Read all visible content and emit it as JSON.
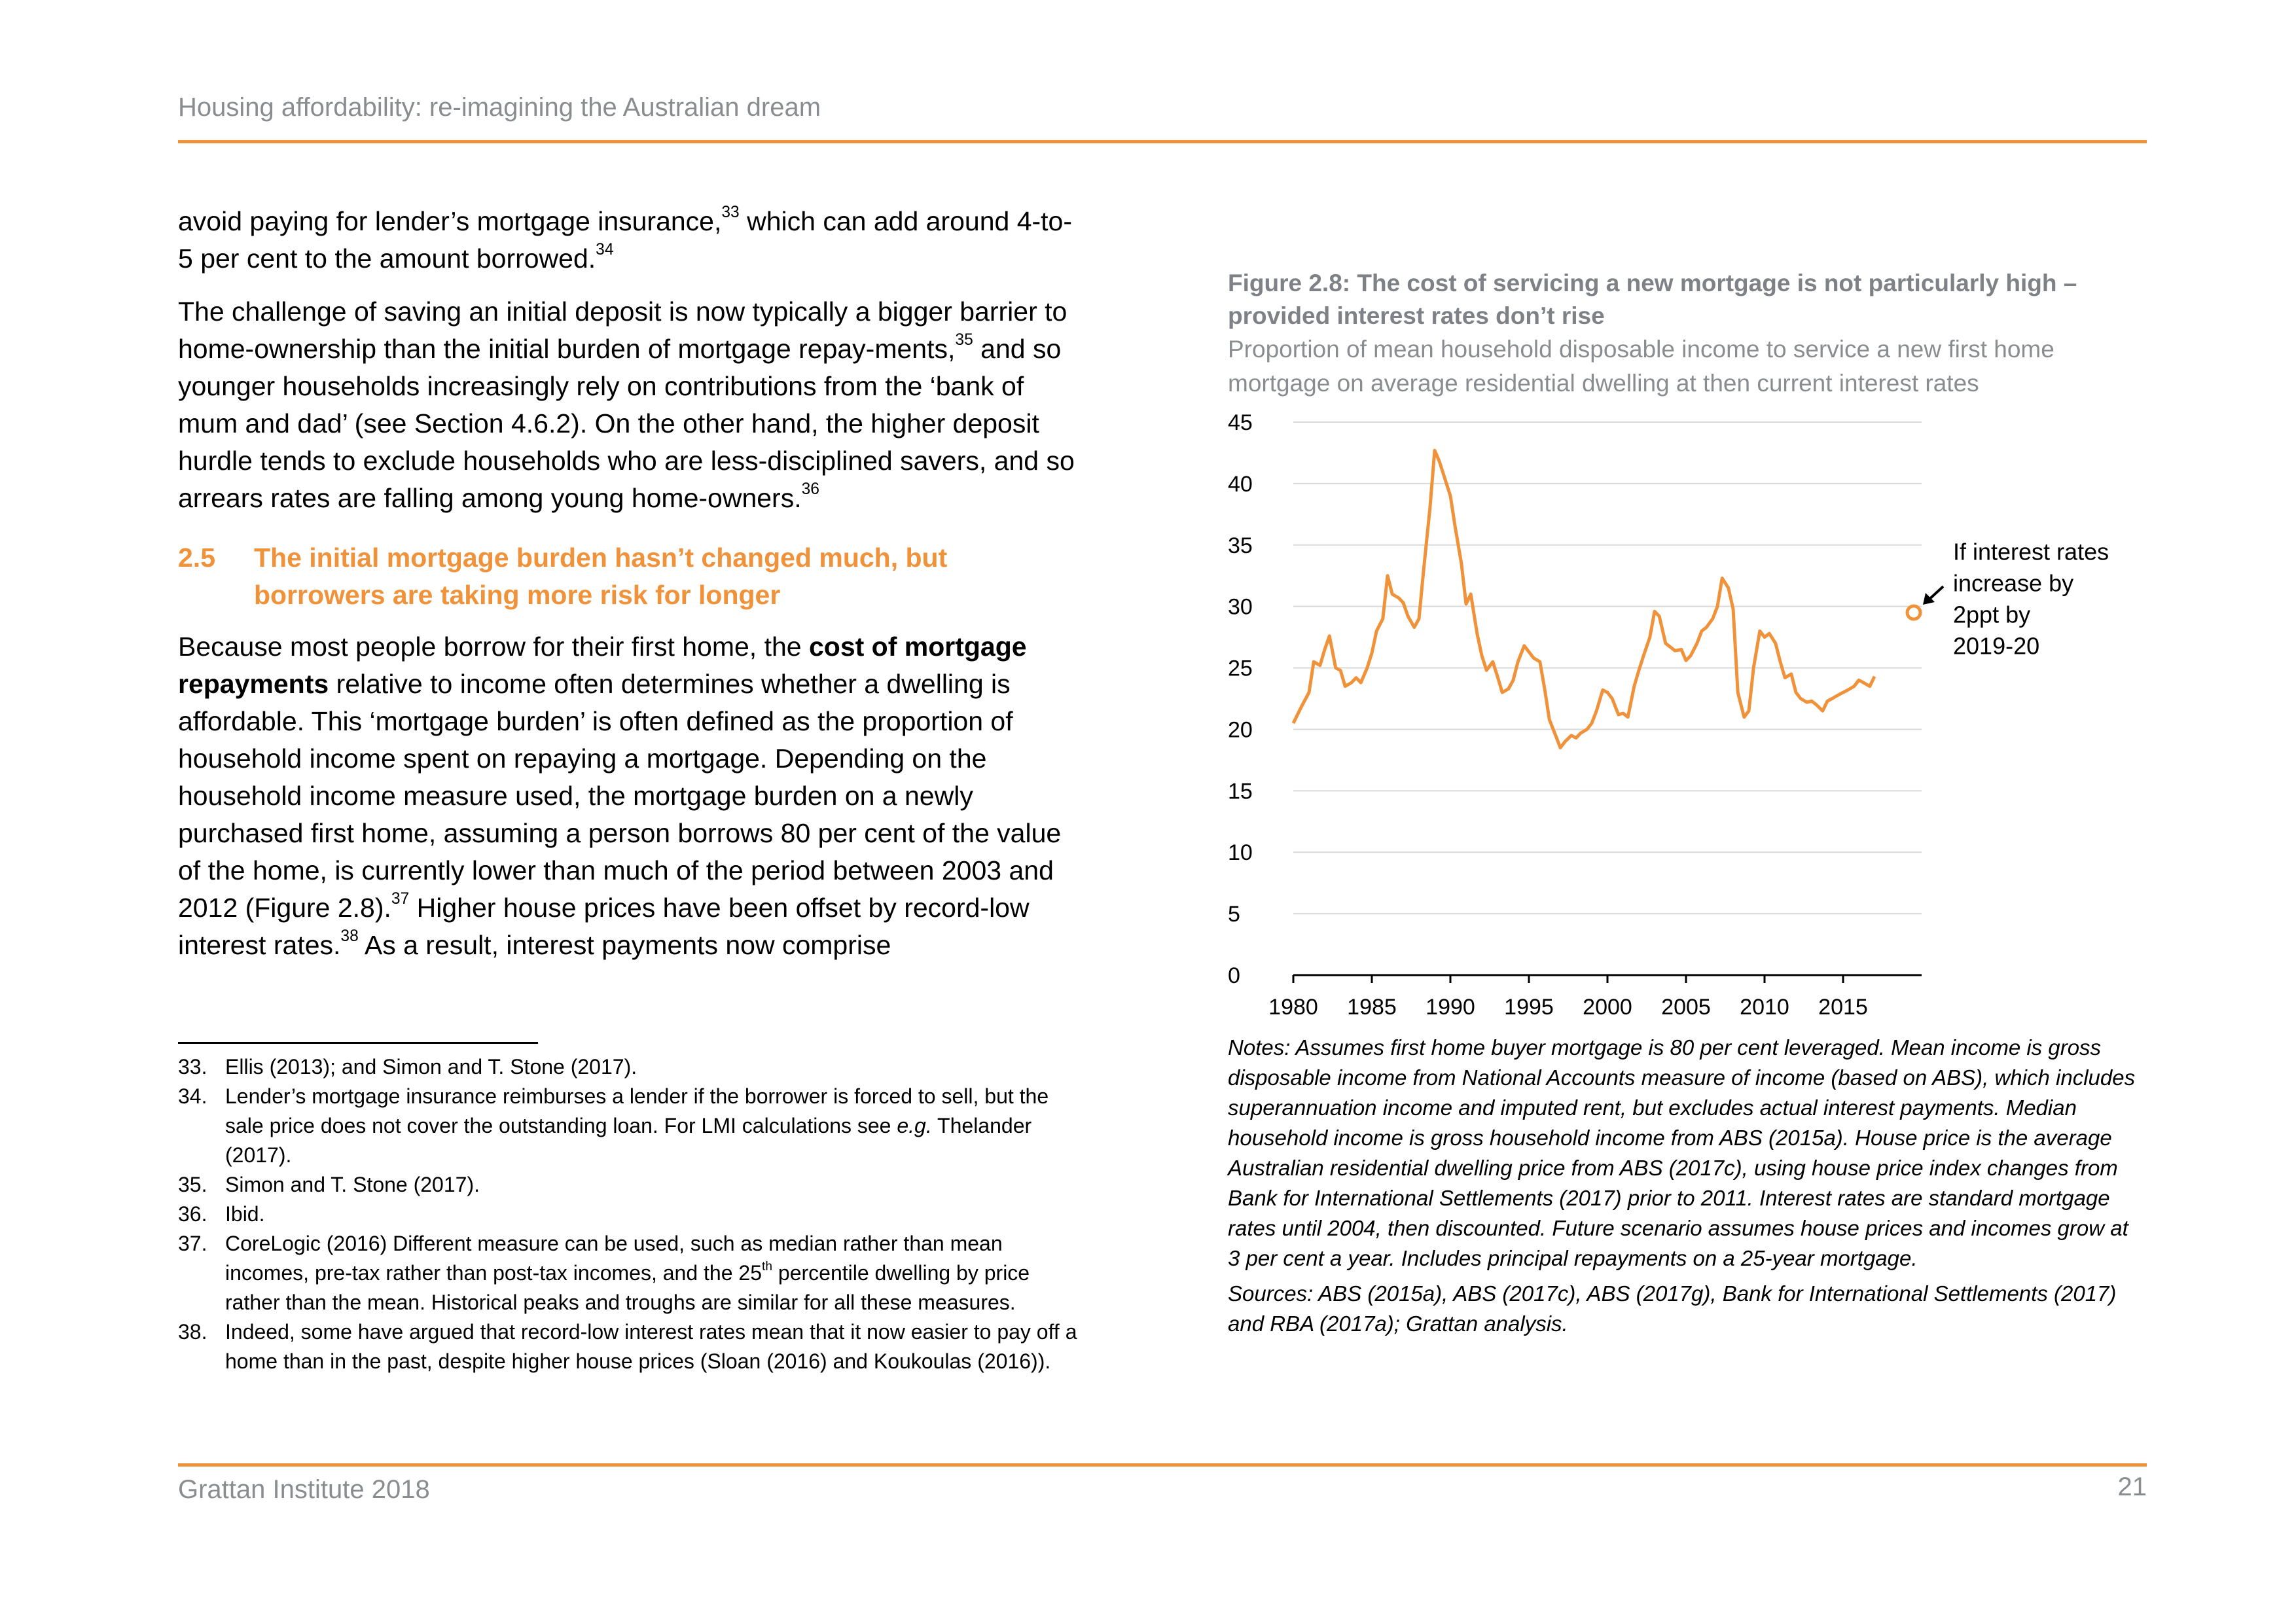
{
  "header": {
    "title": "Housing affordability: re-imagining the Australian dream"
  },
  "body": {
    "p1": {
      "a": "avoid paying for lender’s mortgage insurance,",
      "s1": "33",
      "b": " which can add around 4-to-5 per cent to the amount borrowed.",
      "s2": "34"
    },
    "p2": {
      "a": "The challenge of saving an initial deposit is now typically a bigger barrier to home-ownership than the initial burden of mortgage repay-ments,",
      "s1": "35",
      "b": " and so younger households increasingly rely on contributions from the ‘bank of mum and dad’ (see Section 4.6.2). On the other hand, the higher deposit hurdle tends to exclude households who are less-disciplined savers, and so arrears rates are falling among young home-owners.",
      "s2": "36"
    },
    "section": {
      "number": "2.5",
      "title": "The initial mortgage burden hasn’t changed much, but borrowers are taking more risk for longer"
    },
    "p3": {
      "a": "Because most people borrow for their first home, the ",
      "bold": "cost of mortgage repayments",
      "b": " relative to income often determines whether a dwelling is affordable. This ‘mortgage burden’ is often defined as the proportion of household income spent on repaying a mortgage. Depending on the household income measure used, the mortgage burden on a newly purchased first home, assuming a person borrows 80 per cent of the value of the home, is currently lower than much of the period between 2003 and 2012 (Figure 2.8).",
      "s1": "37",
      "c": " Higher house prices have been offset by record-low interest rates.",
      "s2": "38",
      "d": " As a result, interest payments now comprise"
    }
  },
  "footnotes": [
    {
      "num": "33.",
      "text": "Ellis (2013); and Simon and T. Stone (2017)."
    },
    {
      "num": "34.",
      "text": "Lender’s mortgage insurance reimburses a lender if the borrower is forced to sell, but the sale price does not cover the outstanding loan. For LMI calculations see ",
      "italic": "e.g.",
      "text2": " Thelander (2017)."
    },
    {
      "num": "35.",
      "text": "Simon and T. Stone (2017)."
    },
    {
      "num": "36.",
      "text": "Ibid."
    },
    {
      "num": "37.",
      "text": "CoreLogic (2016) Different measure can be used, such as median rather than mean incomes, pre-tax rather than post-tax incomes, and the 25",
      "sup": "th",
      "text2": " percentile dwelling by price rather than the mean. Historical peaks and troughs are similar for all these measures."
    },
    {
      "num": "38.",
      "text": "Indeed, some have argued that record-low interest rates mean that it now easier to pay off a home than in the past, despite higher house prices (Sloan (2016) and Koukoulas (2016))."
    }
  ],
  "figure": {
    "title": "Figure 2.8: The cost of servicing a new mortgage is not particularly high – provided interest rates don’t rise",
    "subtitle": "Proportion of mean household disposable income to service a new first home mortgage on average residential dwelling at then current interest rates",
    "notes": "Notes: Assumes first home buyer mortgage is 80 per cent leveraged. Mean income is gross disposable income from National Accounts measure of income (based on ABS), which includes superannuation income and imputed rent, but excludes actual interest payments. Median household income is gross household income from ABS (2015a). House price is the average Australian residential dwelling price from ABS (2017c), using house price index changes from Bank for International Settlements (2017) prior to 2011. Interest rates are standard mortgage rates until 2004, then discounted. Future scenario assumes house prices and incomes grow at 3 per cent a year. Includes principal repayments on a 25-year mortgage.",
    "sources": "Sources: ABS (2015a), ABS (2017c), ABS (2017g), Bank for International Settlements (2017) and RBA (2017a); Grattan analysis."
  },
  "chart_data": {
    "type": "line",
    "title": "",
    "xlabel": "",
    "ylabel": "",
    "xlim": [
      1980,
      2020
    ],
    "ylim": [
      0,
      45
    ],
    "xticks": [
      "1980",
      "1985",
      "1990",
      "1995",
      "2000",
      "2005",
      "2010",
      "2015"
    ],
    "yticks": [
      "0",
      "5",
      "10",
      "15",
      "20",
      "25",
      "30",
      "35",
      "40",
      "45"
    ],
    "grid": "horizontal",
    "color": "#f0923a",
    "series": [
      {
        "x": [
          1980.0,
          1980.5,
          1981.0,
          1981.3,
          1981.7,
          1982.0,
          1982.3,
          1982.7,
          1983.0,
          1983.3,
          1983.7,
          1984.0,
          1984.3,
          1984.7,
          1985.0,
          1985.3,
          1985.7,
          1986.0,
          1986.3,
          1986.7,
          1987.0,
          1987.3,
          1987.7,
          1988.0,
          1988.3,
          1988.7,
          1989.0,
          1989.3,
          1989.7,
          1990.0,
          1990.3,
          1990.7,
          1991.0,
          1991.3,
          1991.7,
          1992.0,
          1992.3,
          1992.7,
          1993.0,
          1993.3,
          1993.7,
          1994.0,
          1994.3,
          1994.7,
          1995.0,
          1995.3,
          1995.7,
          1996.0,
          1996.3,
          1996.7,
          1997.0,
          1997.3,
          1997.7,
          1998.0,
          1998.3,
          1998.7,
          1999.0,
          1999.3,
          1999.7,
          2000.0,
          2000.3,
          2000.7,
          2001.0,
          2001.3,
          2001.7,
          2002.0,
          2002.3,
          2002.7,
          2003.0,
          2003.3,
          2003.7,
          2004.0,
          2004.3,
          2004.7,
          2005.0,
          2005.3,
          2005.7,
          2006.0,
          2006.3,
          2006.7,
          2007.0,
          2007.3,
          2007.7,
          2008.0,
          2008.3,
          2008.7,
          2009.0,
          2009.3,
          2009.7,
          2010.0,
          2010.3,
          2010.7,
          2011.0,
          2011.3,
          2011.7,
          2012.0,
          2012.3,
          2012.7,
          2013.0,
          2013.3,
          2013.7,
          2014.0,
          2014.3,
          2014.7,
          2015.0,
          2015.3,
          2015.7,
          2016.0,
          2016.3,
          2016.7,
          2017.0
        ],
        "values": [
          20.5,
          21.8,
          23.0,
          25.5,
          25.2,
          26.5,
          27.6,
          25.0,
          24.8,
          23.5,
          23.8,
          24.2,
          23.8,
          25.0,
          26.2,
          28.0,
          29.0,
          32.5,
          31.0,
          30.7,
          30.3,
          29.2,
          28.3,
          29.0,
          33.0,
          38.0,
          42.7,
          41.8,
          40.2,
          39.0,
          36.5,
          33.5,
          30.2,
          31.0,
          27.8,
          26.0,
          24.8,
          25.5,
          24.3,
          23.0,
          23.3,
          24.0,
          25.5,
          26.8,
          26.3,
          25.8,
          25.5,
          23.3,
          20.8,
          19.5,
          18.5,
          19.0,
          19.5,
          19.3,
          19.7,
          20.0,
          20.5,
          21.5,
          23.2,
          23.0,
          22.5,
          21.2,
          21.3,
          21.0,
          23.5,
          24.8,
          26.0,
          27.5,
          29.6,
          29.2,
          27.0,
          26.7,
          26.4,
          26.5,
          25.6,
          26.0,
          27.0,
          28.0,
          28.3,
          29.0,
          30.0,
          32.3,
          31.5,
          29.8,
          23.0,
          21.0,
          21.5,
          25.0,
          28.0,
          27.5,
          27.8,
          27.0,
          25.5,
          24.2,
          24.5,
          23.0,
          22.5,
          22.2,
          22.3,
          22.0,
          21.5,
          22.3,
          22.5,
          22.8,
          23.0,
          23.2,
          23.5,
          24.0,
          23.8,
          23.5,
          24.3
        ]
      }
    ],
    "scenario_point": {
      "x": 2019.5,
      "y": 29.5
    },
    "annotation": "If interest rates increase by 2ppt by 2019-20"
  },
  "footer": {
    "org": "Grattan Institute 2018",
    "page": "21"
  }
}
